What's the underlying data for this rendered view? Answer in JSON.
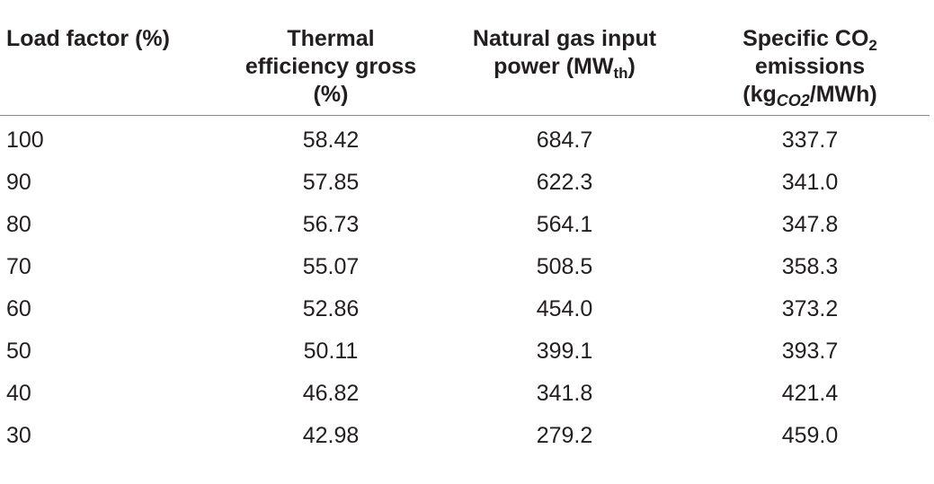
{
  "table": {
    "headers": {
      "load_factor": "Load factor (%)",
      "thermal_line1": "Thermal",
      "thermal_line2": "efficiency gross",
      "thermal_line3": "(%)",
      "gas_line1": "Natural gas input",
      "gas_line2_main": "power (MW",
      "gas_line2_sub": "th",
      "gas_line2_end": ")",
      "co2_line1_main": "Specific CO",
      "co2_line1_sub": "2",
      "co2_line2": "emissions",
      "co2_line3_main": "(kg",
      "co2_line3_sub": "CO2",
      "co2_line3_end": "/MWh)"
    },
    "rows": [
      {
        "load": "100",
        "efficiency": "58.42",
        "gas_power": "684.7",
        "co2": "337.7"
      },
      {
        "load": "90",
        "efficiency": "57.85",
        "gas_power": "622.3",
        "co2": "341.0"
      },
      {
        "load": "80",
        "efficiency": "56.73",
        "gas_power": "564.1",
        "co2": "347.8"
      },
      {
        "load": "70",
        "efficiency": "55.07",
        "gas_power": "508.5",
        "co2": "358.3"
      },
      {
        "load": "60",
        "efficiency": "52.86",
        "gas_power": "454.0",
        "co2": "373.2"
      },
      {
        "load": "50",
        "efficiency": "50.11",
        "gas_power": "399.1",
        "co2": "393.7"
      },
      {
        "load": "40",
        "efficiency": "46.82",
        "gas_power": "341.8",
        "co2": "421.4"
      },
      {
        "load": "30",
        "efficiency": "42.98",
        "gas_power": "279.2",
        "co2": "459.0"
      }
    ]
  }
}
